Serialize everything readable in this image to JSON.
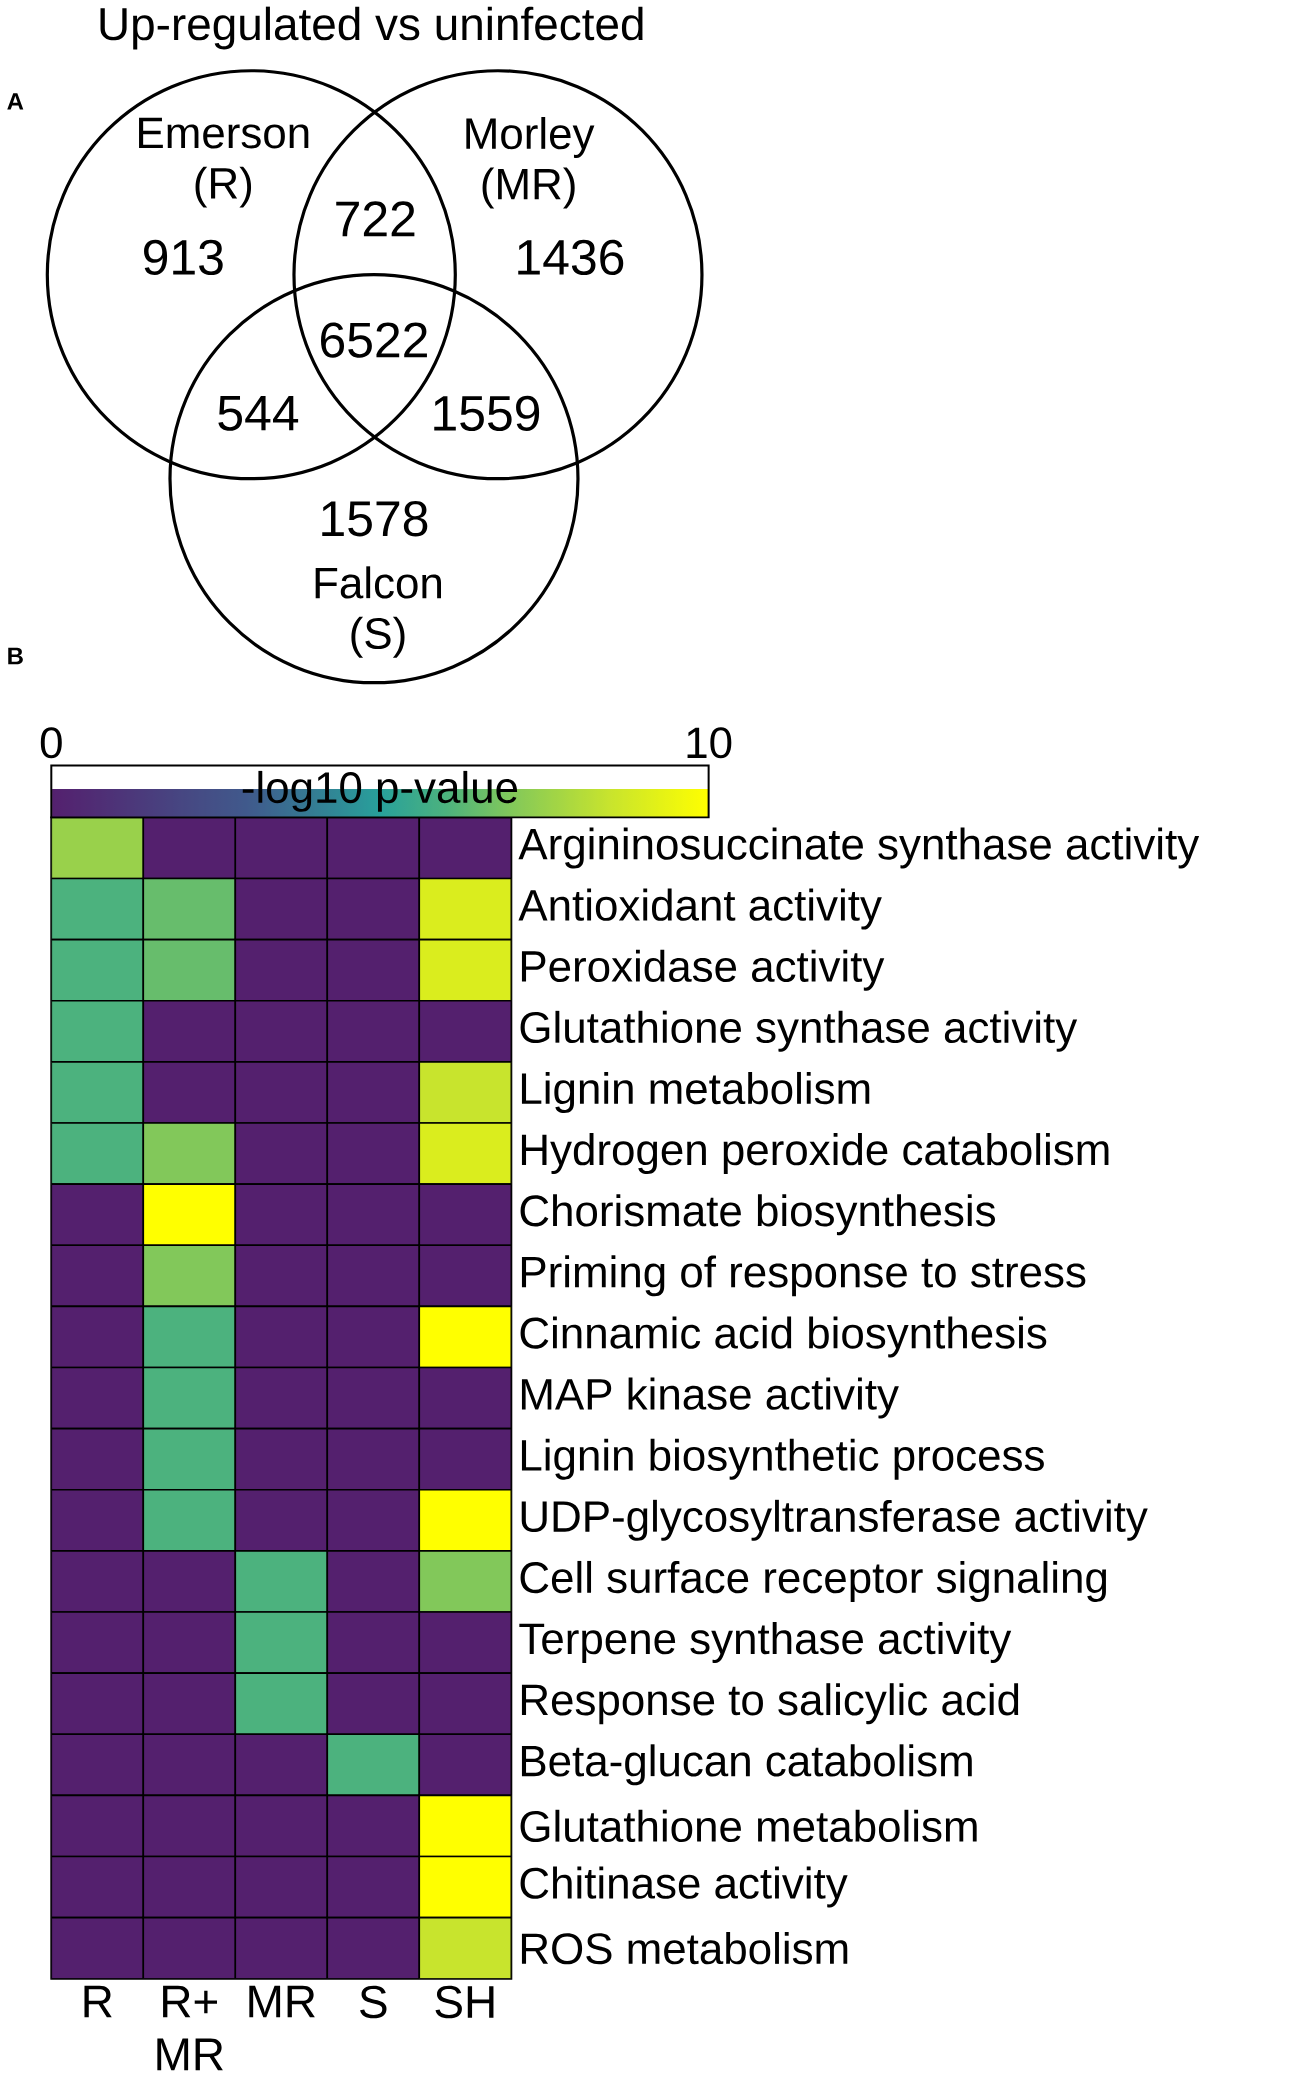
{
  "chart_data": [
    {
      "type": "other",
      "title": "Up-regulated vs uninfected",
      "categories": [
        null,
        null,
        null,
        null,
        null,
        null,
        null
      ],
      "values": [
        913,
        722,
        1436,
        6522,
        544,
        1559,
        1578
      ],
      "data_labels": true,
      "annotations": [
        "A",
        "Emerson (R)",
        "Morley (MR)",
        "Falcon (S)"
      ]
    },
    {
      "type": "heatmap",
      "categories": [
        "R",
        "R+ MR",
        "MR",
        "S",
        "SH"
      ],
      "y_categories": [
        "Argininosuccinate synthase activity",
        "Antioxidant activity",
        "Peroxidase activity",
        "Glutathione synthase activity",
        "Lignin metabolism",
        "Hydrogen peroxide catabolism",
        "Chorismate biosynthesis",
        "Priming of response to stress",
        "Cinnamic acid biosynthesis",
        "MAP kinase activity",
        "Lignin biosynthetic process",
        "UDP-glycosyltransferase activity",
        "Cell surface receptor signaling",
        "Terpene synthase activity",
        "Response to salicylic acid",
        "Beta-glucan catabolism",
        "Glutathione metabolism",
        "Chitinase activity",
        "ROS metabolism"
      ],
      "cells": [
        [
          7.5,
          0,
          0,
          0,
          0
        ],
        [
          6,
          6.5,
          0,
          0,
          9
        ],
        [
          6,
          6.5,
          0,
          0,
          9
        ],
        [
          6,
          0,
          0,
          0,
          0
        ],
        [
          6,
          0,
          0,
          0,
          8.5
        ],
        [
          6,
          7,
          0,
          0,
          9
        ],
        [
          0,
          10,
          0,
          0,
          0
        ],
        [
          0,
          7,
          0,
          0,
          0
        ],
        [
          0,
          6,
          0,
          0,
          10
        ],
        [
          0,
          6,
          0,
          0,
          0
        ],
        [
          0,
          6,
          0,
          0,
          0
        ],
        [
          0,
          6,
          0,
          0,
          10
        ],
        [
          0,
          0,
          6,
          0,
          7
        ],
        [
          0,
          0,
          6,
          0,
          0
        ],
        [
          0,
          0,
          6,
          0,
          0
        ],
        [
          0,
          0,
          0,
          6,
          0
        ],
        [
          0,
          0,
          0,
          0,
          10
        ],
        [
          0,
          0,
          0,
          0,
          10
        ],
        [
          0,
          0,
          0,
          0,
          8.5
        ]
      ],
      "clim": [
        0,
        10
      ],
      "cticks": [
        0,
        10
      ],
      "clabel": "-log10 p-value",
      "annotations": [
        "B"
      ]
    }
  ]
}
